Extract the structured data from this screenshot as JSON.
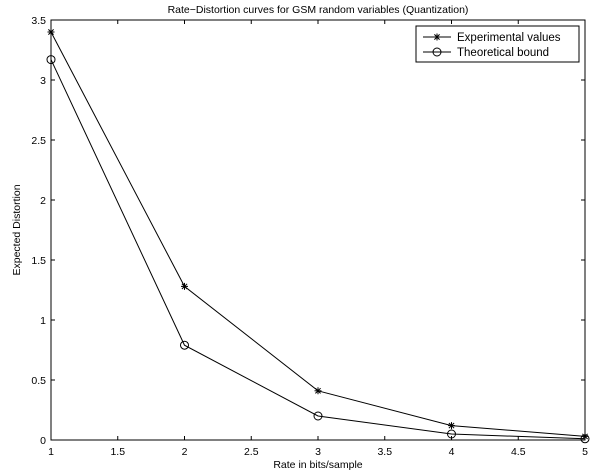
{
  "chart_data": {
    "type": "line",
    "title": "Rate−Distortion curves for GSM random variables (Quantization)",
    "xlabel": "Rate in bits/sample",
    "ylabel": "Expected Distortion",
    "xlim": [
      1,
      5
    ],
    "ylim": [
      0,
      3.5
    ],
    "xticks": [
      1,
      1.5,
      2,
      2.5,
      3,
      3.5,
      4,
      4.5,
      5
    ],
    "yticks": [
      0,
      0.5,
      1,
      1.5,
      2,
      2.5,
      3,
      3.5
    ],
    "grid": false,
    "legend_position": "top-right",
    "x": [
      1,
      2,
      3,
      4,
      5
    ],
    "series": [
      {
        "name": "Experimental values",
        "marker": "asterisk",
        "color": "#000000",
        "values": [
          3.4,
          1.28,
          0.41,
          0.12,
          0.03
        ]
      },
      {
        "name": "Theoretical bound",
        "marker": "circle",
        "color": "#000000",
        "values": [
          3.17,
          0.79,
          0.2,
          0.05,
          0.01
        ]
      }
    ]
  }
}
